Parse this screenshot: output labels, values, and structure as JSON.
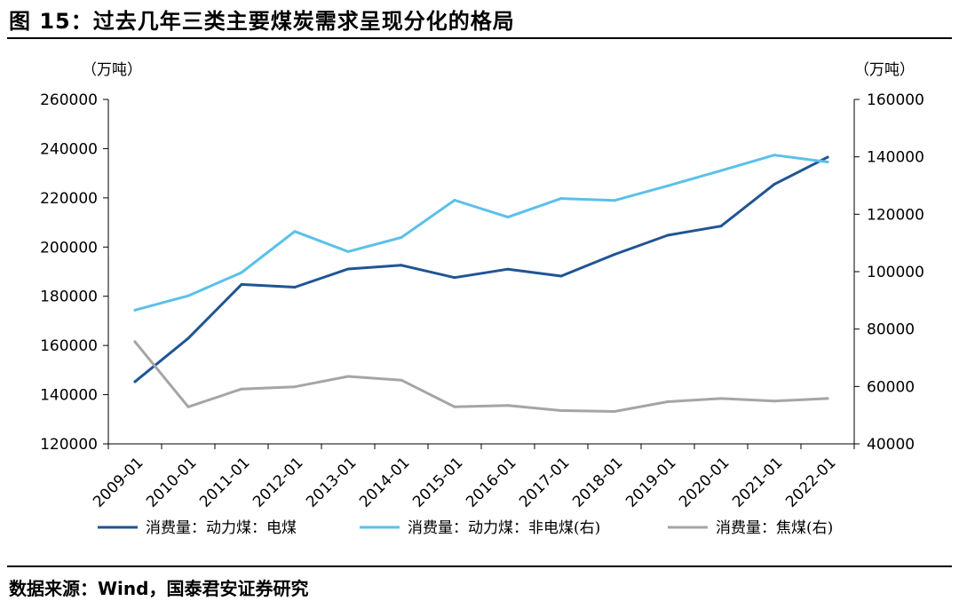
{
  "title": "图 15：过去几年三类主要煤炭需求呈现分化的格局",
  "source": "数据来源：Wind，国泰君安证券研究",
  "chart_data": {
    "type": "line",
    "title": "图 15：过去几年三类主要煤炭需求呈现分化的格局",
    "categories": [
      "2009-01",
      "2010-01",
      "2011-01",
      "2012-01",
      "2013-01",
      "2014-01",
      "2015-01",
      "2016-01",
      "2017-01",
      "2018-01",
      "2019-01",
      "2020-01",
      "2021-01",
      "2022-01"
    ],
    "left_axis": {
      "unit": "（万吨）",
      "range": [
        120000,
        260000
      ],
      "ticks": [
        120000,
        140000,
        160000,
        180000,
        200000,
        220000,
        240000,
        260000
      ]
    },
    "right_axis": {
      "unit": "（万吨）",
      "range": [
        40000,
        160000
      ],
      "ticks": [
        40000,
        60000,
        80000,
        100000,
        120000,
        140000,
        160000
      ]
    },
    "grid": false,
    "legend_position": "bottom",
    "series": [
      {
        "name": "消费量：动力煤：电煤",
        "axis": "left",
        "color": "#1f5594",
        "values": [
          145300,
          162900,
          184800,
          183700,
          191100,
          192600,
          187600,
          191000,
          188200,
          197000,
          204800,
          208500,
          225500,
          236500
        ]
      },
      {
        "name": "消费量：动力煤：非电煤(右)",
        "axis": "right",
        "color": "#5bc0ea",
        "values": [
          86600,
          91600,
          99700,
          114000,
          107000,
          111900,
          124900,
          119000,
          125500,
          124800,
          129900,
          135200,
          140600,
          138200
        ]
      },
      {
        "name": "消费量：焦煤(右)",
        "axis": "right",
        "color": "#a5a5a5",
        "values": [
          75600,
          52900,
          59100,
          59900,
          63500,
          62200,
          52900,
          53400,
          51600,
          51300,
          54700,
          55800,
          54900,
          55800
        ]
      }
    ]
  }
}
